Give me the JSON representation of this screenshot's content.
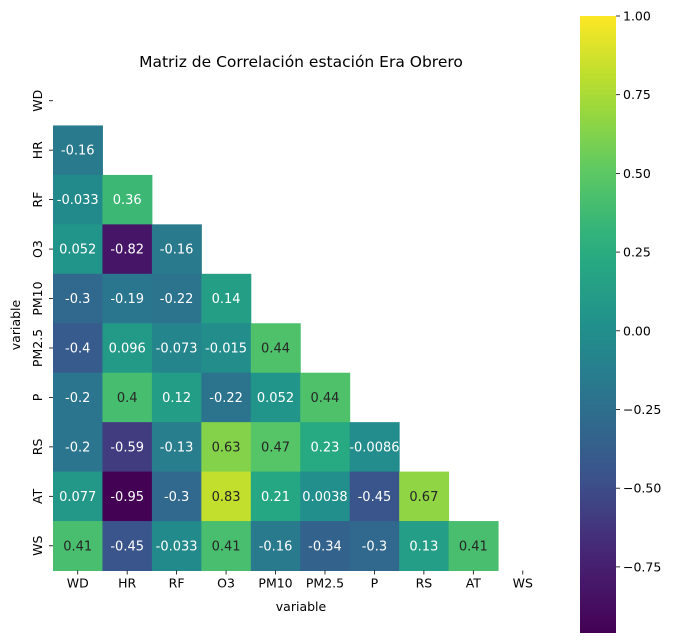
{
  "chart_data": {
    "type": "heatmap",
    "title": "Matriz de Correlación estación Era Obrero",
    "xlabel": "variable",
    "ylabel": "variable",
    "variables": [
      "WD",
      "HR",
      "RF",
      "O3",
      "PM10",
      "PM2.5",
      "P",
      "RS",
      "AT",
      "WS"
    ],
    "mask": "upper-triangle-including-diagonal",
    "colormap": "viridis",
    "vmin": -0.96,
    "vmax": 1.0,
    "lower_triangle": [
      [],
      [
        -0.16
      ],
      [
        -0.033,
        0.36
      ],
      [
        0.052,
        -0.82,
        -0.16
      ],
      [
        -0.3,
        -0.19,
        -0.22,
        0.14
      ],
      [
        -0.4,
        0.096,
        -0.073,
        -0.015,
        0.44
      ],
      [
        -0.2,
        0.4,
        0.12,
        -0.22,
        0.052,
        0.44
      ],
      [
        -0.2,
        -0.59,
        -0.13,
        0.63,
        0.47,
        0.23,
        -0.0086
      ],
      [
        0.077,
        -0.95,
        -0.3,
        0.83,
        0.21,
        0.0038,
        -0.45,
        0.67
      ],
      [
        0.41,
        -0.45,
        -0.033,
        0.41,
        -0.16,
        -0.34,
        -0.3,
        0.13,
        0.41
      ]
    ],
    "colorbar_ticks": [
      1.0,
      0.75,
      0.5,
      0.25,
      0.0,
      -0.25,
      -0.5,
      -0.75
    ],
    "colorbar_tick_labels": [
      "1.00",
      "0.75",
      "0.50",
      "0.25",
      "0.00",
      "−0.25",
      "−0.50",
      "−0.75"
    ]
  }
}
